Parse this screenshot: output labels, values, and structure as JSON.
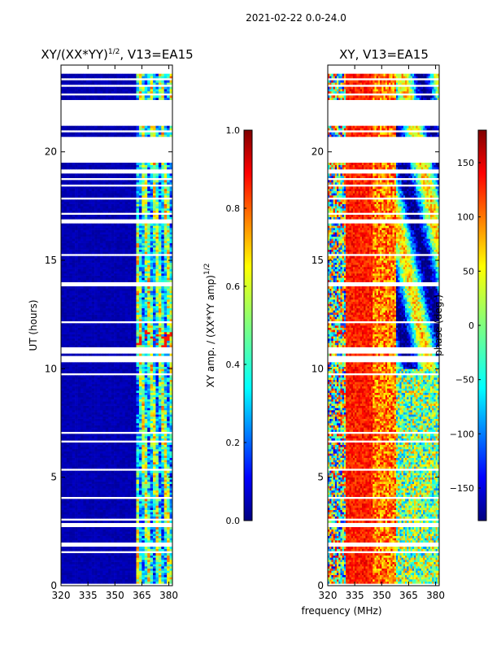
{
  "page_title": "2021-02-22 0.0-24.0",
  "colors": {
    "jet": [
      "#00007f",
      "#0000ff",
      "#007fff",
      "#00ffff",
      "#7fff7f",
      "#ffff00",
      "#ff7f00",
      "#ff0000",
      "#7f0000"
    ],
    "background": "#ffffff"
  },
  "chart_data": [
    {
      "type": "heatmap",
      "title_prefix": "XY/(XX*YY)",
      "title_sup": "1/2",
      "title_suffix": ", V13=EA15",
      "xlabel": "",
      "ylabel": "UT (hours)",
      "xlim": [
        320,
        382
      ],
      "ylim": [
        0,
        24
      ],
      "xticks": [
        "320",
        "335",
        "350",
        "365",
        "380"
      ],
      "xtick_values": [
        320,
        335,
        350,
        365,
        380
      ],
      "yticks": [
        "0",
        "5",
        "10",
        "15",
        "20"
      ],
      "ytick_values": [
        0,
        5,
        10,
        15,
        20
      ],
      "colorbar": {
        "label_prefix": "XY amp. / (XX*YY amp)",
        "label_sup": "1/2",
        "range": [
          0.0,
          1.0
        ],
        "ticks": [
          "0.0",
          "0.2",
          "0.4",
          "0.6",
          "0.8",
          "1.0"
        ],
        "tick_values": [
          0.0,
          0.2,
          0.4,
          0.6,
          0.8,
          1.0
        ]
      },
      "data_gaps_hours": [
        [
          0.05,
          0.15
        ],
        [
          1.5,
          1.6
        ],
        [
          1.85,
          2.0
        ],
        [
          2.75,
          2.85
        ],
        [
          3.0,
          3.1
        ],
        [
          3.45,
          3.55
        ],
        [
          4.0,
          4.1
        ],
        [
          5.35,
          5.45
        ],
        [
          6.6,
          6.7
        ],
        [
          7.0,
          7.1
        ],
        [
          9.75,
          9.85
        ],
        [
          10.3,
          10.65
        ],
        [
          10.7,
          11.0
        ],
        [
          11.3,
          11.35
        ],
        [
          12.1,
          12.2
        ],
        [
          13.8,
          14.0
        ],
        [
          15.2,
          15.3
        ],
        [
          16.75,
          16.95
        ],
        [
          17.1,
          17.2
        ],
        [
          17.8,
          17.9
        ],
        [
          18.4,
          18.5
        ],
        [
          18.7,
          18.8
        ],
        [
          19.05,
          19.2
        ],
        [
          19.5,
          20.7
        ],
        [
          20.95,
          21.05
        ],
        [
          21.2,
          22.45
        ],
        [
          22.6,
          22.7
        ],
        [
          23.0,
          23.1
        ],
        [
          23.3,
          23.4
        ],
        [
          23.65,
          24.0
        ]
      ],
      "active_band_mhz": [
        362,
        382
      ]
    },
    {
      "type": "heatmap",
      "title": "XY, V13=EA15",
      "xlabel": "frequency (MHz)",
      "ylabel": "",
      "xlim": [
        320,
        382
      ],
      "ylim": [
        0,
        24
      ],
      "xticks": [
        "320",
        "335",
        "350",
        "365",
        "380"
      ],
      "xtick_values": [
        320,
        335,
        350,
        365,
        380
      ],
      "yticks": [
        "0",
        "5",
        "10",
        "15",
        "20"
      ],
      "ytick_values": [
        0,
        5,
        10,
        15,
        20
      ],
      "colorbar": {
        "label": "phase (deg.)",
        "range": [
          -180,
          180
        ],
        "ticks": [
          "−150",
          "−100",
          "−50",
          "0",
          "50",
          "100",
          "150"
        ],
        "tick_values": [
          -150,
          -100,
          -50,
          0,
          50,
          100,
          150
        ]
      },
      "data_gaps_hours": [
        [
          0.05,
          0.15
        ],
        [
          1.5,
          1.6
        ],
        [
          1.85,
          2.0
        ],
        [
          2.75,
          2.85
        ],
        [
          3.0,
          3.1
        ],
        [
          3.45,
          3.55
        ],
        [
          4.0,
          4.1
        ],
        [
          5.35,
          5.45
        ],
        [
          6.6,
          6.7
        ],
        [
          7.0,
          7.1
        ],
        [
          9.75,
          9.85
        ],
        [
          10.3,
          10.65
        ],
        [
          10.7,
          11.0
        ],
        [
          11.3,
          11.35
        ],
        [
          12.1,
          12.2
        ],
        [
          13.8,
          14.0
        ],
        [
          15.2,
          15.3
        ],
        [
          16.75,
          16.95
        ],
        [
          17.1,
          17.2
        ],
        [
          17.8,
          17.9
        ],
        [
          18.4,
          18.5
        ],
        [
          18.7,
          18.8
        ],
        [
          19.05,
          19.2
        ],
        [
          19.5,
          20.7
        ],
        [
          20.95,
          21.05
        ],
        [
          21.2,
          22.45
        ],
        [
          22.6,
          22.7
        ],
        [
          23.0,
          23.1
        ],
        [
          23.3,
          23.4
        ],
        [
          23.65,
          24.0
        ]
      ]
    }
  ]
}
